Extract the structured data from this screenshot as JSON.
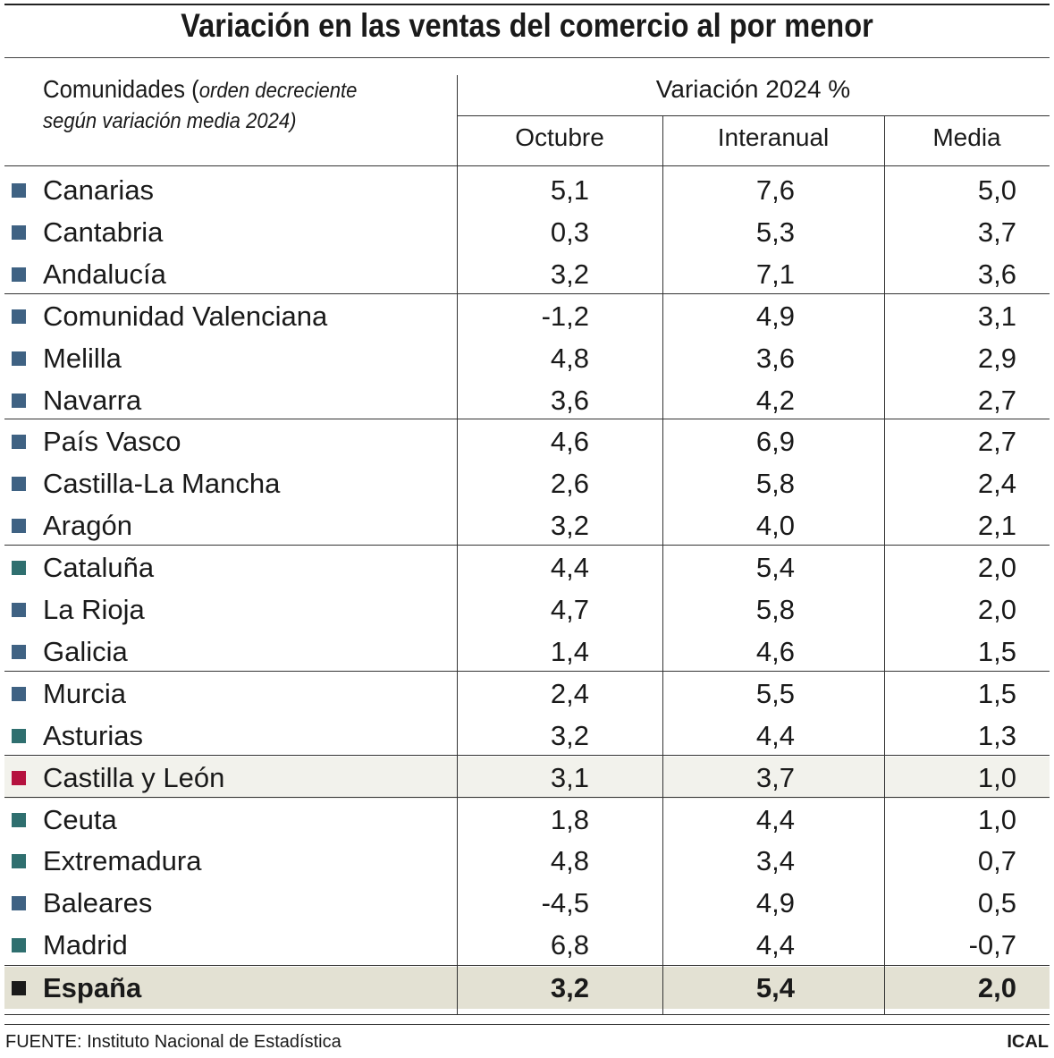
{
  "title": "Variación en las ventas del comercio al por menor",
  "header": {
    "comunidades": "Comunidades",
    "orden_line1": "orden decreciente",
    "orden_line2": "según variación media 2024)",
    "group": "Variación 2024 %",
    "columns": [
      "Octubre",
      "Interanual",
      "Media"
    ]
  },
  "colors": {
    "blue": "#3f6283",
    "teal": "#2f6f6f",
    "crimson": "#b5123f",
    "black": "#1a1a1a"
  },
  "chart_data": {
    "type": "table",
    "columns": [
      "Octubre",
      "Interanual",
      "Media"
    ],
    "rows": [
      {
        "name": "Canarias",
        "values": [
          "5,1",
          "7,6",
          "5,0"
        ],
        "color": "#3f6283"
      },
      {
        "name": "Cantabria",
        "values": [
          "0,3",
          "5,3",
          "3,7"
        ],
        "color": "#3f6283"
      },
      {
        "name": "Andalucía",
        "values": [
          "3,2",
          "7,1",
          "3,6"
        ],
        "color": "#3f6283"
      },
      {
        "name": "Comunidad Valenciana",
        "values": [
          "-1,2",
          "4,9",
          "3,1"
        ],
        "color": "#3f6283"
      },
      {
        "name": "Melilla",
        "values": [
          "4,8",
          "3,6",
          "2,9"
        ],
        "color": "#3f6283"
      },
      {
        "name": "Navarra",
        "values": [
          "3,6",
          "4,2",
          "2,7"
        ],
        "color": "#3f6283"
      },
      {
        "name": "País Vasco",
        "values": [
          "4,6",
          "6,9",
          "2,7"
        ],
        "color": "#3f6283"
      },
      {
        "name": "Castilla-La Mancha",
        "values": [
          "2,6",
          "5,8",
          "2,4"
        ],
        "color": "#3f6283"
      },
      {
        "name": "Aragón",
        "values": [
          "3,2",
          "4,0",
          "2,1"
        ],
        "color": "#3f6283"
      },
      {
        "name": "Cataluña",
        "values": [
          "4,4",
          "5,4",
          "2,0"
        ],
        "color": "#2f6f6f"
      },
      {
        "name": "La Rioja",
        "values": [
          "4,7",
          "5,8",
          "2,0"
        ],
        "color": "#3f6283"
      },
      {
        "name": "Galicia",
        "values": [
          "1,4",
          "4,6",
          "1,5"
        ],
        "color": "#3f6283"
      },
      {
        "name": "Murcia",
        "values": [
          "2,4",
          "5,5",
          "1,5"
        ],
        "color": "#3f6283"
      },
      {
        "name": "Asturias",
        "values": [
          "3,2",
          "4,4",
          "1,3"
        ],
        "color": "#2f6f6f"
      },
      {
        "name": "Castilla y León",
        "values": [
          "3,1",
          "3,7",
          "1,0"
        ],
        "color": "#b5123f",
        "highlight": true
      },
      {
        "name": "Ceuta",
        "values": [
          "1,8",
          "4,4",
          "1,0"
        ],
        "color": "#2f6f6f"
      },
      {
        "name": "Extremadura",
        "values": [
          "4,8",
          "3,4",
          "0,7"
        ],
        "color": "#2f6f6f"
      },
      {
        "name": "Baleares",
        "values": [
          "-4,5",
          "4,9",
          "0,5"
        ],
        "color": "#3f6283"
      },
      {
        "name": "Madrid",
        "values": [
          "6,8",
          "4,4",
          "-0,7"
        ],
        "color": "#2f6f6f"
      }
    ],
    "total": {
      "name": "España",
      "values": [
        "3,2",
        "5,4",
        "2,0"
      ],
      "color": "#1a1a1a"
    }
  },
  "footer": {
    "source": "FUENTE: Instituto Nacional de Estadística",
    "brand": "ICAL"
  }
}
